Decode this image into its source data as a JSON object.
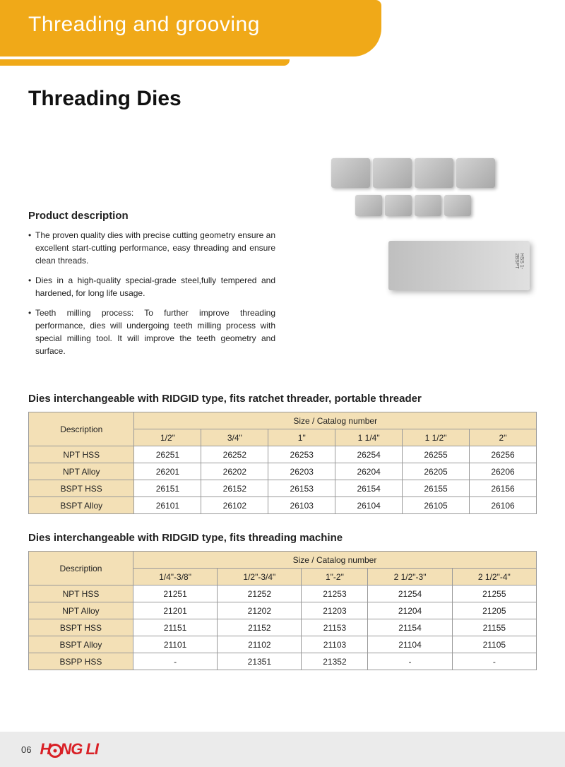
{
  "banner": {
    "title": "Threading and grooving"
  },
  "heading": "Threading Dies",
  "desc": {
    "title": "Product description",
    "bullets": [
      "The proven quality dies with precise cutting geometry ensure  an excellent start-cutting performance, easy threading  and ensure clean threads.",
      "Dies in a high-quality special-grade steel,fully tempered and hardened, for long life usage.",
      "Teeth milling process: To further improve threading performance, dies will undergoing teeth milling process with special milling tool. It will improve the teeth geometry and surface."
    ]
  },
  "table1": {
    "title": "Dies interchangeable with RIDGID type, fits ratchet threader, portable threader",
    "desc_head": "Description",
    "size_head": "Size / Catalog number",
    "sizes": [
      "1/2\"",
      "3/4\"",
      "1\"",
      "1 1/4\"",
      "1 1/2\"",
      "2\""
    ],
    "rows": [
      {
        "label": "NPT HSS",
        "vals": [
          "26251",
          "26252",
          "26253",
          "26254",
          "26255",
          "26256"
        ]
      },
      {
        "label": "NPT Alloy",
        "vals": [
          "26201",
          "26202",
          "26203",
          "26204",
          "26205",
          "26206"
        ]
      },
      {
        "label": "BSPT HSS",
        "vals": [
          "26151",
          "26152",
          "26153",
          "26154",
          "26155",
          "26156"
        ]
      },
      {
        "label": "BSPT Alloy",
        "vals": [
          "26101",
          "26102",
          "26103",
          "26104",
          "26105",
          "26106"
        ]
      }
    ]
  },
  "table2": {
    "title": "Dies interchangeable with RIDGID type, fits threading machine",
    "desc_head": "Description",
    "size_head": "Size / Catalog number",
    "sizes": [
      "1/4\"-3/8\"",
      "1/2\"-3/4\"",
      "1\"-2\"",
      "2 1/2\"-3\"",
      "2 1/2\"-4\""
    ],
    "rows": [
      {
        "label": "NPT HSS",
        "vals": [
          "21251",
          "21252",
          "21253",
          "21254",
          "21255"
        ]
      },
      {
        "label": "NPT Alloy",
        "vals": [
          "21201",
          "21202",
          "21203",
          "21204",
          "21205"
        ]
      },
      {
        "label": "BSPT HSS",
        "vals": [
          "21151",
          "21152",
          "21153",
          "21154",
          "21155"
        ]
      },
      {
        "label": "BSPT Alloy",
        "vals": [
          "21101",
          "21102",
          "21103",
          "21104",
          "21105"
        ]
      },
      {
        "label": "BSPP HSS",
        "vals": [
          "-",
          "21351",
          "21352",
          "-",
          "-"
        ]
      }
    ]
  },
  "footer": {
    "page_num": "06",
    "logo": "HONG LI"
  },
  "colors": {
    "accent_orange": "#f0a918",
    "table_header_bg": "#f3e0b6",
    "table_border": "#999999",
    "footer_bg": "#ebebeb",
    "logo_red": "#d92026"
  }
}
